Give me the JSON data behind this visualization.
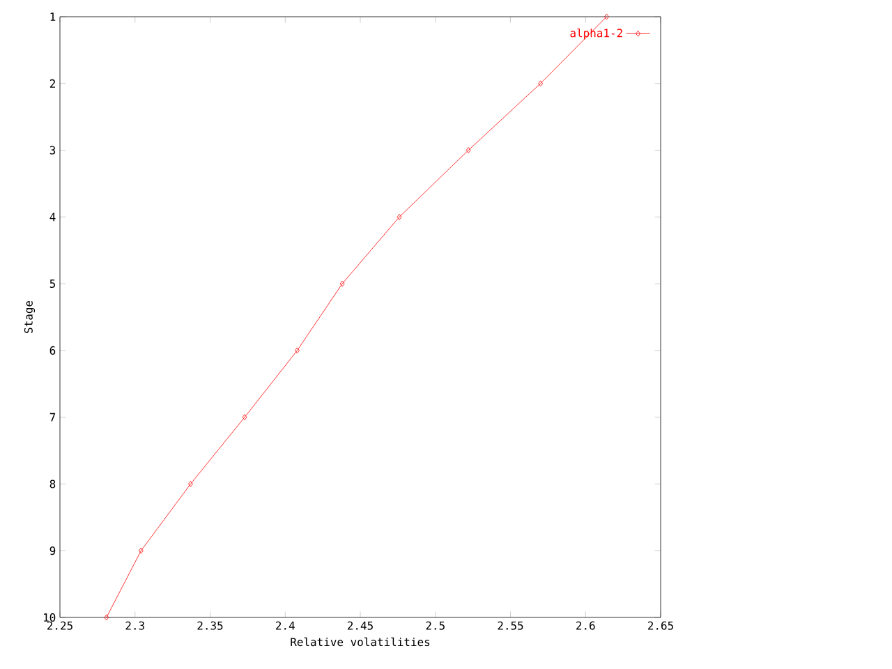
{
  "chart_data": {
    "type": "line",
    "xlabel": "Relative volatilities",
    "ylabel": "Stage",
    "x": [
      2.614,
      2.57,
      2.522,
      2.476,
      2.438,
      2.408,
      2.373,
      2.337,
      2.304,
      2.281
    ],
    "series": [
      {
        "name": "alpha1-2",
        "color": "#ff0000",
        "values": [
          1,
          2,
          3,
          4,
          5,
          6,
          7,
          8,
          9,
          10
        ]
      }
    ],
    "xlim": [
      2.25,
      2.65
    ],
    "ylim": [
      10,
      1
    ],
    "xticks": [
      2.25,
      2.3,
      2.35,
      2.4,
      2.45,
      2.5,
      2.55,
      2.6,
      2.65
    ],
    "yticks": [
      1,
      2,
      3,
      4,
      5,
      6,
      7,
      8,
      9,
      10
    ],
    "legend": "top right",
    "marker": "diamond",
    "line_style": "solid",
    "grid": false
  }
}
